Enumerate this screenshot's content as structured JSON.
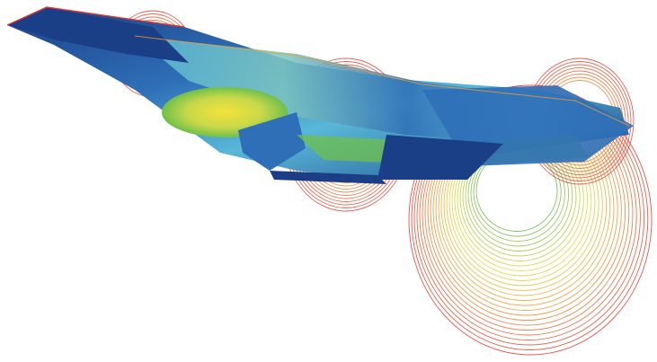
{
  "figure": {
    "subject": "hypersonic-vehicle-cfd-visualization",
    "palette": {
      "background": "#ffffff",
      "surface_dark_blue": "#1b3f86",
      "surface_mid_blue": "#2f6fb7",
      "surface_cyan": "#58b8d8",
      "surface_teal": "#7fc7c0",
      "surface_green": "#6fc04a",
      "surface_yellow": "#f4e23a",
      "surface_orange": "#f19a2a",
      "contour_red": "#e4332a",
      "contour_orange": "#ef8a2a",
      "contour_yellow": "#e8d530",
      "contour_green": "#68b846"
    }
  }
}
